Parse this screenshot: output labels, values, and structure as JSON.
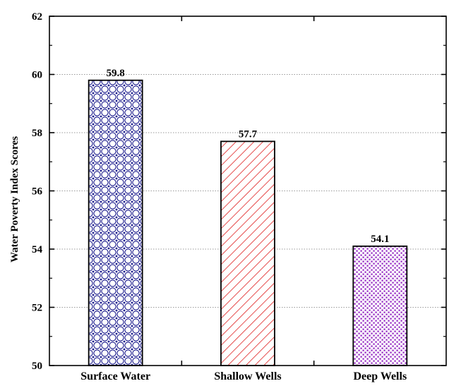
{
  "chart_data": {
    "type": "bar",
    "categories": [
      "Surface Water",
      "Shallow Wells",
      "Deep Wells"
    ],
    "values": [
      59.8,
      57.7,
      54.1
    ],
    "value_labels": [
      "59.8",
      "57.7",
      "54.1"
    ],
    "title": "",
    "xlabel": "",
    "ylabel": "Water Poverty Index Scores",
    "ylim": [
      50,
      62
    ],
    "yticks": [
      50,
      52,
      54,
      56,
      58,
      60,
      62
    ],
    "grid": "horizontal dotted",
    "bar_styles": [
      {
        "pattern": "circles",
        "color": "#1a1a8c"
      },
      {
        "pattern": "diagonal-hatch",
        "color": "#e02020"
      },
      {
        "pattern": "dots",
        "color": "#9020c0"
      }
    ]
  }
}
